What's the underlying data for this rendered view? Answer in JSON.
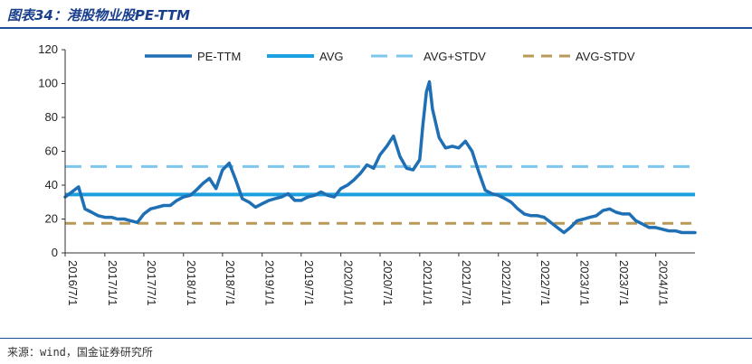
{
  "header": {
    "title": "图表34：港股物业股PE-TTM"
  },
  "footer": {
    "source": "来源：wind，国金证券研究所"
  },
  "colors": {
    "pe": "#1f6fb5",
    "avg": "#1ca0e0",
    "avg_plus": "#7dc7ef",
    "avg_minus": "#b99a58",
    "title": "#1a3f8c"
  },
  "chart_data": {
    "type": "line",
    "title": "港股物业股PE-TTM",
    "xlabel": "",
    "ylabel": "",
    "ylim": [
      0,
      120
    ],
    "yticks": [
      0,
      20,
      40,
      60,
      80,
      100,
      120
    ],
    "xlim": [
      "2016/7/1",
      "2024/7/1"
    ],
    "xticks": [
      "2016/7/1",
      "2017/1/1",
      "2017/7/1",
      "2018/1/1",
      "2018/7/1",
      "2019/1/1",
      "2019/7/1",
      "2020/1/1",
      "2020/7/1",
      "2021/1/1",
      "2021/7/1",
      "2022/1/1",
      "2022/7/1",
      "2023/1/1",
      "2023/7/1",
      "2024/1/1"
    ],
    "grid": false,
    "legend_position": "top",
    "series": [
      {
        "name": "PE-TTM",
        "style": "solid-thick",
        "x": [
          "2016/7/1",
          "2016/8/1",
          "2016/9/1",
          "2016/10/1",
          "2016/11/1",
          "2016/12/1",
          "2017/1/1",
          "2017/2/1",
          "2017/3/1",
          "2017/4/1",
          "2017/5/1",
          "2017/6/1",
          "2017/7/1",
          "2017/8/1",
          "2017/9/1",
          "2017/10/1",
          "2017/11/1",
          "2017/12/1",
          "2018/1/1",
          "2018/2/1",
          "2018/3/1",
          "2018/4/1",
          "2018/5/1",
          "2018/6/1",
          "2018/7/1",
          "2018/8/1",
          "2018/9/1",
          "2018/10/1",
          "2018/11/1",
          "2018/12/1",
          "2019/1/1",
          "2019/2/1",
          "2019/3/1",
          "2019/4/1",
          "2019/5/1",
          "2019/6/1",
          "2019/7/1",
          "2019/8/1",
          "2019/9/1",
          "2019/10/1",
          "2019/11/1",
          "2019/12/1",
          "2020/1/1",
          "2020/2/1",
          "2020/3/1",
          "2020/4/1",
          "2020/5/1",
          "2020/6/1",
          "2020/7/1",
          "2020/8/1",
          "2020/9/1",
          "2020/10/1",
          "2020/11/1",
          "2020/12/1",
          "2021/1/1",
          "2021/1/15",
          "2021/2/1",
          "2021/2/15",
          "2021/3/1",
          "2021/4/1",
          "2021/5/1",
          "2021/6/1",
          "2021/7/1",
          "2021/8/1",
          "2021/9/1",
          "2021/10/1",
          "2021/11/1",
          "2021/12/1",
          "2022/1/1",
          "2022/2/1",
          "2022/3/1",
          "2022/4/1",
          "2022/5/1",
          "2022/6/1",
          "2022/7/1",
          "2022/8/1",
          "2022/9/1",
          "2022/10/1",
          "2022/11/1",
          "2022/12/1",
          "2023/1/1",
          "2023/2/1",
          "2023/3/1",
          "2023/4/1",
          "2023/5/1",
          "2023/6/1",
          "2023/7/1",
          "2023/8/1",
          "2023/9/1",
          "2023/10/1",
          "2023/11/1",
          "2023/12/1",
          "2024/1/1",
          "2024/2/1",
          "2024/3/1",
          "2024/4/1",
          "2024/5/1",
          "2024/6/1",
          "2024/7/1"
        ],
        "values": [
          33,
          36,
          39,
          26,
          24,
          22,
          21,
          21,
          20,
          20,
          19,
          18,
          23,
          26,
          27,
          28,
          28,
          31,
          33,
          34,
          37,
          41,
          44,
          38,
          49,
          53,
          43,
          32,
          30,
          27,
          29,
          31,
          32,
          33,
          35,
          31,
          31,
          33,
          34,
          36,
          34,
          33,
          38,
          40,
          43,
          47,
          52,
          50,
          58,
          63,
          69,
          57,
          50,
          49,
          55,
          75,
          95,
          101,
          85,
          68,
          62,
          63,
          62,
          66,
          60,
          48,
          37,
          35,
          34,
          32,
          30,
          26,
          23,
          22,
          22,
          21,
          18,
          15,
          12,
          15,
          19,
          20,
          21,
          22,
          25,
          26,
          24,
          23,
          23,
          19,
          17,
          15,
          15,
          14,
          13,
          13,
          12,
          12,
          12
        ]
      },
      {
        "name": "AVG",
        "style": "solid",
        "value": 34.5
      },
      {
        "name": "AVG+STDV",
        "style": "dashed",
        "value": 51
      },
      {
        "name": "AVG-STDV",
        "style": "dashed",
        "value": 17.5
      }
    ]
  }
}
